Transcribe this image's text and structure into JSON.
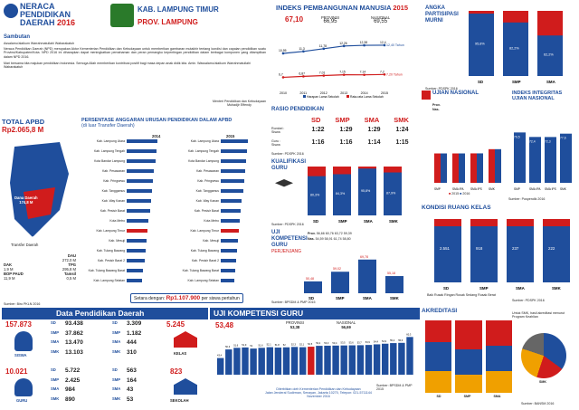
{
  "header": {
    "title1": "NERACA",
    "title2": "PENDIDIKAN",
    "title3": "DAERAH",
    "year": "2016",
    "kab": "KAB. LAMPUNG TIMUR",
    "prov": "PROV. LAMPUNG"
  },
  "sambutan": {
    "title": "Sambutan",
    "greet": "Assalamu'alaikum Warrahmatullahi Wabarakatuh",
    "p1": "Neraca Pendidikan Daerah (NPD) merupakan Aktor Kementerian Pendidikan dan Kebudayaan untuk memberikan gambaran mutakhir tentang kondisi dan capaian pendidikan suatu Provinsi/Kabupaten/Kota. NPD 2016 ini diharapkan dapat meningkatkan pemahaman dan peran pemangku kepentingan pendidikan dalam berbagai komponen yang ditampilkan dalam NPD 2016.",
    "p2": "Mari bersama kita majukan pendidikan Indonesia. Semoga Allah memberikan kontribusi positif bagi masa depan anak didik kita. Amin. Wassalamu'alaikum Warrahmatullahi Wabarakatuh",
    "sign1": "Menteri Pendidikan dan Kebudayaan",
    "sign2": "Muhadjir Effendy"
  },
  "ipm": {
    "title": "INDEKS PEMBANGUNAN MANUSIA",
    "year": "2015",
    "value": "67,10",
    "prov_label": "PROVINSI",
    "prov": "66,95",
    "nas_label": "NASIONAL",
    "nas": "69,55",
    "series_a": "12,40 Tahun",
    "series_b": "7,20 Tahun",
    "legend_a": "Harapan Lama Sekolah",
    "legend_b": "Rata-rata Lama Sekolah",
    "source": "Sumber: BPS 2016"
  },
  "partisipasi": {
    "title1": "ANGKA",
    "title2": "PARTISIPASI",
    "title3": "MURNI",
    "source": "Sumber: PDSPK 2016"
  },
  "apbd": {
    "title": "TOTAL APBD",
    "value": "Rp2.065,8 M",
    "dana_label": "Dana Daerah",
    "dana": "174,8 M",
    "transfer_label": "Transfer Daerah",
    "transfer": "1.891 M",
    "dau_label": "DAU",
    "dau": "272,0 M",
    "dak_label": "DAK",
    "dak": "1,9 M",
    "tpg_label": "TPG",
    "tpg": "295,8 M",
    "bop_label": "BOP PAUD",
    "bop": "11,9 M",
    "tamsil_label": "Tamsil",
    "tamsil": "0,5 M",
    "source": "Sumber: Biro PKLN 2016"
  },
  "anggaran": {
    "title": "PERSENTASE ANGGARAN URUSAN PENDIDIKAN DALAM APBD",
    "subtitle": "(di luar Transfer Daerah)",
    "year_left": "2014",
    "year_right": "2015",
    "footer": "Setara dengan:",
    "footer_value": "Rp1.107.900",
    "footer_tail": "per siswa pertahun"
  },
  "rasio": {
    "title": "RASIO PENDIDIKAN",
    "sd": "SD",
    "smp": "SMP",
    "sma": "SMA",
    "smk": "SMK",
    "rombel": "Rombel :\nSiswa",
    "guru": "Guru :\nSiswa",
    "r_sd": "1:22",
    "r_smp": "1:29",
    "r_sma": "1:29",
    "r_smk": "1:24",
    "g_sd": "1:16",
    "g_smp": "1:16",
    "g_sma": "1:14",
    "g_smk": "1:15",
    "source": "Sumber: PDSPK 2016"
  },
  "kualifikasi": {
    "title": "KUALIFIKASI GURU",
    "sd": "SD",
    "smp": "SMP",
    "sma": "SMA",
    "smk": "SMK",
    "source": "Sumber: PDSPK 2016"
  },
  "ukg": {
    "title": "UJI KOMPETENSI GURU",
    "sub": "PERJENJANG",
    "prov_label": "Prov.",
    "prov": "56,66 60,76 63,72 59,39",
    "nas_label": "Nas.",
    "nas": "54,59 58,91 61,74 58,80",
    "source": "Sumber: BPSDM & PMP 2015"
  },
  "un": {
    "title": "UJIAN NASIONAL",
    "integ": "INDEKS INTEGRITAS UJIAN NASIONAL",
    "prov": "Prov.",
    "nas": "Nas.",
    "l2015": "2015",
    "l2016": "2016",
    "source": "Sumber: Puspendik 2016"
  },
  "ruang": {
    "title": "KONDISI RUANG KELAS",
    "legend": "Baik  Rusak Ringan  Rusak Sedang  Rusak Berat",
    "source": "Sumber: PDSPK 2016"
  },
  "npd": {
    "title": "Data Pendidikan Daerah",
    "siswa": "SISWA",
    "guru": "GURU",
    "kelas": "KELAS",
    "sekolah": "SEKOLAH",
    "siswa_total": "157.873",
    "guru_total": "10.021",
    "kelas_total": "5.245",
    "sekolah_total": "823"
  },
  "ukg2": {
    "title": "UJI KOMPETENSI GURU",
    "value": "53,48",
    "prov_label": "PROVINSI",
    "prov": "53,38",
    "nas_label": "NASIONAL",
    "nas": "56,69",
    "footer1": "Diterbitkan oleh Kementerian Pendidikan dan Kebudayaan",
    "footer2": "Jalan Jenderal Sudirman, Senayan, Jakarta 10270, Telepon: 021-5711144",
    "footer3": "November 2016",
    "source": "Sumber: BPSDM & PMP 2015"
  },
  "akreditasi": {
    "title": "AKREDITASI",
    "note": "Untuk SMK, hasil akreditasi menurut Program Keahlian",
    "sd": "SD",
    "smp": "SMP",
    "sma": "SMA",
    "smk": "SMK",
    "source": "Sumber: BANSM 2016"
  },
  "colors": {
    "red": "#d01c1c",
    "blue": "#1f4e9c",
    "dark": "#243a7a"
  },
  "chart_data": [
    {
      "type": "line",
      "title": "INDEKS PEMBANGUNAN MANUSIA",
      "x": [
        "2010",
        "2011",
        "2012",
        "2013",
        "2014",
        "2015"
      ],
      "series": [
        {
          "name": "Harapan Lama Sekolah",
          "values": [
            10.95,
            11.3,
            11.78,
            12.26,
            12.38,
            12.4
          ]
        },
        {
          "name": "Rata-rata Lama Sekolah",
          "values": [
            6.7,
            6.87,
            7.01,
            7.15,
            7.14,
            7.2
          ]
        }
      ]
    },
    {
      "type": "bar",
      "title": "ANGKA PARTISIPASI MURNI",
      "categories": [
        "SD",
        "SMP",
        "SMA"
      ],
      "series": [
        {
          "name": "",
          "values": [
            95.8,
            82.2,
            62.2
          ]
        }
      ]
    },
    {
      "type": "bar",
      "title": "UJIAN NASIONAL",
      "categories": [
        "SMP",
        "SMA IPA",
        "SMA IPS",
        "SMK"
      ],
      "series": [
        {
          "name": "2015",
          "values": [
            46.4,
            46.4,
            46.5,
            53.1
          ]
        },
        {
          "name": "2016",
          "values": [
            46.4,
            46.4,
            46.5,
            53.1
          ]
        }
      ]
    },
    {
      "type": "bar",
      "title": "INDEKS INTEGRITAS UJIAN NASIONAL",
      "categories": [
        "SMP",
        "SMA IPA",
        "SMA IPS",
        "SMK"
      ],
      "series": [
        {
          "name": "2016",
          "values": [
            79.5,
            72.4,
            72.3,
            77.6
          ]
        }
      ]
    },
    {
      "type": "bar",
      "title": "KUALIFIKASI GURU",
      "categories": [
        "SD",
        "SMP",
        "SMA",
        "SMK"
      ],
      "series": [
        {
          "name": "",
          "values": [
            80.3,
            84.3,
            95.8,
            87.9
          ]
        }
      ]
    },
    {
      "type": "bar",
      "title": "UJI KOMPETENSI GURU PERJENJANG",
      "categories": [
        "SD",
        "SMP",
        "SMA",
        "SMK"
      ],
      "series": [
        {
          "name": "",
          "values": [
            50.48,
            59.02,
            69.78,
            55.18
          ]
        }
      ]
    },
    {
      "type": "bar",
      "title": "KONDISI RUANG KELAS",
      "categories": [
        "SD",
        "SMP",
        "SMA",
        "SMK"
      ],
      "series": [
        {
          "name": "",
          "values": [
            2551,
            918,
            237,
            222
          ]
        }
      ]
    },
    {
      "type": "bar",
      "title": "UJI KOMPETENSI GURU",
      "categories": [
        "1",
        "2",
        "3",
        "4",
        "5",
        "6",
        "7",
        "8",
        "9",
        "10",
        "11",
        "12",
        "13",
        "14",
        "15",
        "16",
        "17",
        "18",
        "19",
        "20",
        "21",
        "22",
        "23",
        "24"
      ],
      "series": [
        {
          "name": "",
          "values": [
            43.4,
            50.3,
            51.6,
            51.9,
            51.0,
            51.6,
            52.1,
            51.8,
            52.0,
            52.3,
            52.1,
            52.5,
            53.2,
            53.3,
            53.4,
            53.5,
            53.6,
            53.7,
            53.9,
            54.4,
            54.9,
            55.4,
            55.6,
            60.3
          ]
        }
      ]
    }
  ],
  "npd_rows": {
    "siswa": [
      [
        "SD",
        "93.438"
      ],
      [
        "SMP",
        "37.862"
      ],
      [
        "SMA",
        "13.470"
      ],
      [
        "SMK",
        "13.103"
      ]
    ],
    "guru": [
      [
        "SD",
        "5.722"
      ],
      [
        "SMP",
        "2.425"
      ],
      [
        "SMA",
        "984"
      ],
      [
        "SMK",
        "890"
      ]
    ],
    "kelas": [
      [
        "SD",
        "3.309"
      ],
      [
        "SMP",
        "1.182"
      ],
      [
        "SMA",
        "444"
      ],
      [
        "SMK",
        "310"
      ]
    ],
    "sekolah": [
      [
        "SD",
        "563"
      ],
      [
        "SMP",
        "164"
      ],
      [
        "SMA",
        "43"
      ],
      [
        "SMK",
        "53"
      ]
    ]
  }
}
